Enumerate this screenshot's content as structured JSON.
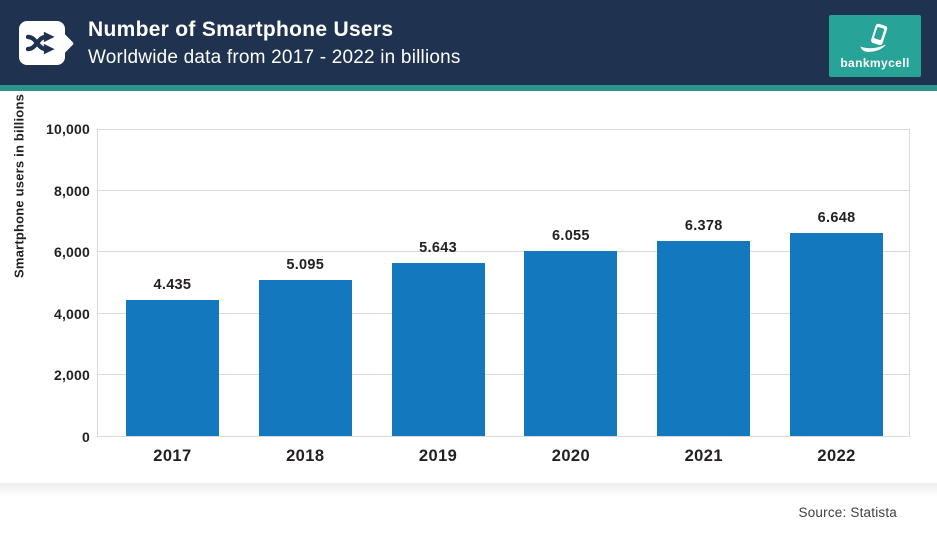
{
  "header": {
    "title": "Number of Smartphone Users",
    "subtitle": "Worldwide data from 2017 - 2022 in billions",
    "brand": "bankmycell"
  },
  "colors": {
    "header_bg": "#1f3350",
    "accent_teal": "#2b948c",
    "brand_teal": "#28a398",
    "bar_blue": "#1478be",
    "grid_gray": "#d9d9d9",
    "text_dark": "#231f20"
  },
  "chart_data": {
    "type": "bar",
    "title": "Number of Smartphone Users",
    "subtitle": "Worldwide data from 2017 - 2022 in billions",
    "categories": [
      "2017",
      "2018",
      "2019",
      "2020",
      "2021",
      "2022"
    ],
    "values": [
      4435,
      5095,
      5643,
      6055,
      6378,
      6648
    ],
    "value_labels": [
      "4.435",
      "5.095",
      "5.643",
      "6.055",
      "6.378",
      "6.648"
    ],
    "xlabel": "",
    "ylabel": "Smartphone users in billions",
    "ylim": [
      0,
      10000
    ],
    "yticks": [
      0,
      2000,
      4000,
      6000,
      8000,
      10000
    ],
    "ytick_labels": [
      "0",
      "2,000",
      "4,000",
      "6,000",
      "8,000",
      "10,000"
    ],
    "grid": true,
    "legend": false
  },
  "footer": {
    "source": "Source: Statista"
  }
}
